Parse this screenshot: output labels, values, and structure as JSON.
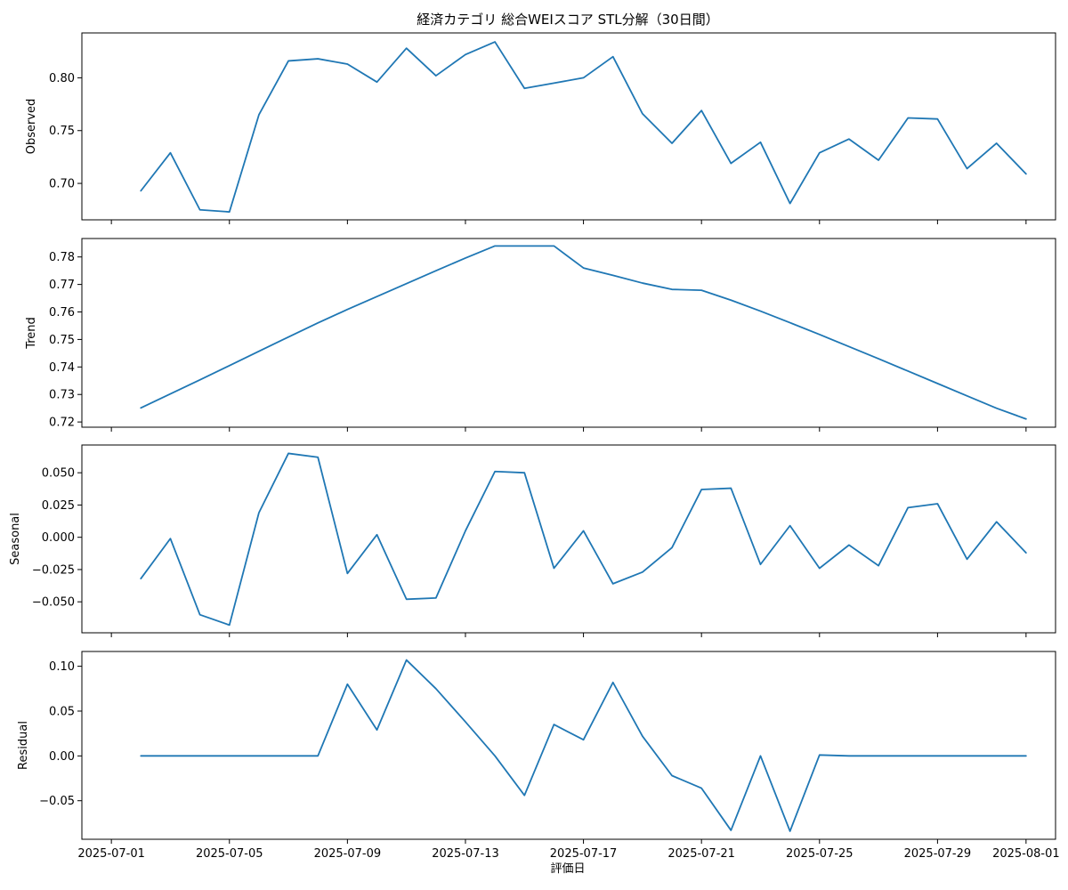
{
  "chart_data": {
    "type": "line",
    "title": "経済カテゴリ 総合WEIスコア STL分解（30日間）",
    "xlabel": "評価日",
    "x": [
      "2025-07-02",
      "2025-07-03",
      "2025-07-04",
      "2025-07-05",
      "2025-07-06",
      "2025-07-07",
      "2025-07-08",
      "2025-07-09",
      "2025-07-10",
      "2025-07-11",
      "2025-07-12",
      "2025-07-13",
      "2025-07-14",
      "2025-07-15",
      "2025-07-16",
      "2025-07-17",
      "2025-07-18",
      "2025-07-19",
      "2025-07-20",
      "2025-07-21",
      "2025-07-22",
      "2025-07-23",
      "2025-07-24",
      "2025-07-25",
      "2025-07-26",
      "2025-07-27",
      "2025-07-28",
      "2025-07-29",
      "2025-07-30",
      "2025-07-31",
      "2025-08-01"
    ],
    "x_ticks": [
      "2025-07-01",
      "2025-07-05",
      "2025-07-09",
      "2025-07-13",
      "2025-07-17",
      "2025-07-21",
      "2025-07-25",
      "2025-07-29",
      "2025-08-01"
    ],
    "x_range": [
      "2025-06-30",
      "2025-08-02"
    ],
    "color": "#1f77b4",
    "panels": [
      {
        "ylabel": "Observed",
        "yticks": [
          "0.70",
          "0.75",
          "0.80"
        ],
        "tick_values": [
          0.7,
          0.75,
          0.8
        ],
        "ylim": [
          0.6655,
          0.8425
        ],
        "values": [
          0.693,
          0.729,
          0.675,
          0.673,
          0.765,
          0.816,
          0.818,
          0.813,
          0.796,
          0.828,
          0.802,
          0.822,
          0.834,
          0.79,
          0.795,
          0.8,
          0.82,
          0.766,
          0.738,
          0.769,
          0.719,
          0.739,
          0.681,
          0.729,
          0.742,
          0.722,
          0.762,
          0.761,
          0.714,
          0.738,
          0.709
        ]
      },
      {
        "ylabel": "Trend",
        "yticks": [
          "0.72",
          "0.73",
          "0.74",
          "0.75",
          "0.76",
          "0.77",
          "0.78"
        ],
        "tick_values": [
          0.72,
          0.73,
          0.74,
          0.75,
          0.76,
          0.77,
          0.78
        ],
        "ylim": [
          0.7181,
          0.7867
        ],
        "values": [
          0.7251,
          0.7302,
          0.7353,
          0.7405,
          0.7457,
          0.7509,
          0.756,
          0.7609,
          0.7656,
          0.7703,
          0.775,
          0.7796,
          0.784,
          0.784,
          0.784,
          0.776,
          0.7733,
          0.7705,
          0.7682,
          0.7679,
          0.7643,
          0.7603,
          0.7561,
          0.7518,
          0.7474,
          0.743,
          0.7385,
          0.734,
          0.7295,
          0.725,
          0.7211
        ]
      },
      {
        "ylabel": "Seasonal",
        "yticks": [
          "−0.050",
          "−0.025",
          "0.000",
          "0.025",
          "0.050"
        ],
        "tick_values": [
          -0.05,
          -0.025,
          0.0,
          0.025,
          0.05
        ],
        "ylim": [
          -0.074,
          0.0715
        ],
        "values": [
          -0.032,
          -0.001,
          -0.06,
          -0.068,
          0.019,
          0.065,
          0.062,
          -0.028,
          0.002,
          -0.048,
          -0.047,
          0.005,
          0.051,
          0.05,
          -0.024,
          0.005,
          -0.036,
          -0.027,
          -0.008,
          0.037,
          0.038,
          -0.021,
          0.009,
          -0.024,
          -0.006,
          -0.022,
          0.023,
          0.026,
          -0.017,
          0.012,
          -0.012
        ]
      },
      {
        "ylabel": "Residual",
        "yticks": [
          "−0.05",
          "0.00",
          "0.05",
          "0.10"
        ],
        "tick_values": [
          -0.05,
          0.0,
          0.05,
          0.1
        ],
        "ylim": [
          -0.093,
          0.1165
        ],
        "values": [
          0.0,
          0.0,
          0.0,
          0.0,
          0.0,
          0.0,
          0.0,
          0.08,
          0.029,
          0.107,
          0.075,
          0.038,
          0.0,
          -0.044,
          0.035,
          0.018,
          0.082,
          0.022,
          -0.022,
          -0.036,
          -0.083,
          0.0,
          -0.084,
          0.001,
          0.0,
          0.0,
          0.0,
          0.0,
          0.0,
          0.0,
          0.0
        ]
      }
    ]
  }
}
